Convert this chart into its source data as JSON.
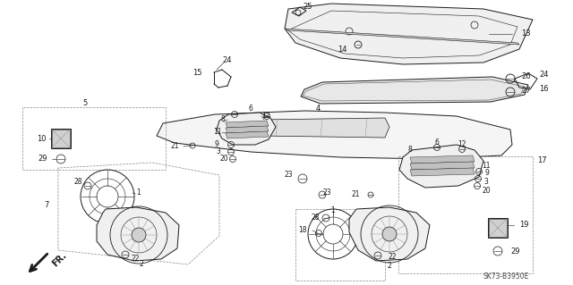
{
  "background_color": "#ffffff",
  "watermark": "SK73-B3950E",
  "lw": 0.7,
  "blk": "#1a1a1a",
  "gray": "#888888",
  "dgray": "#444444"
}
